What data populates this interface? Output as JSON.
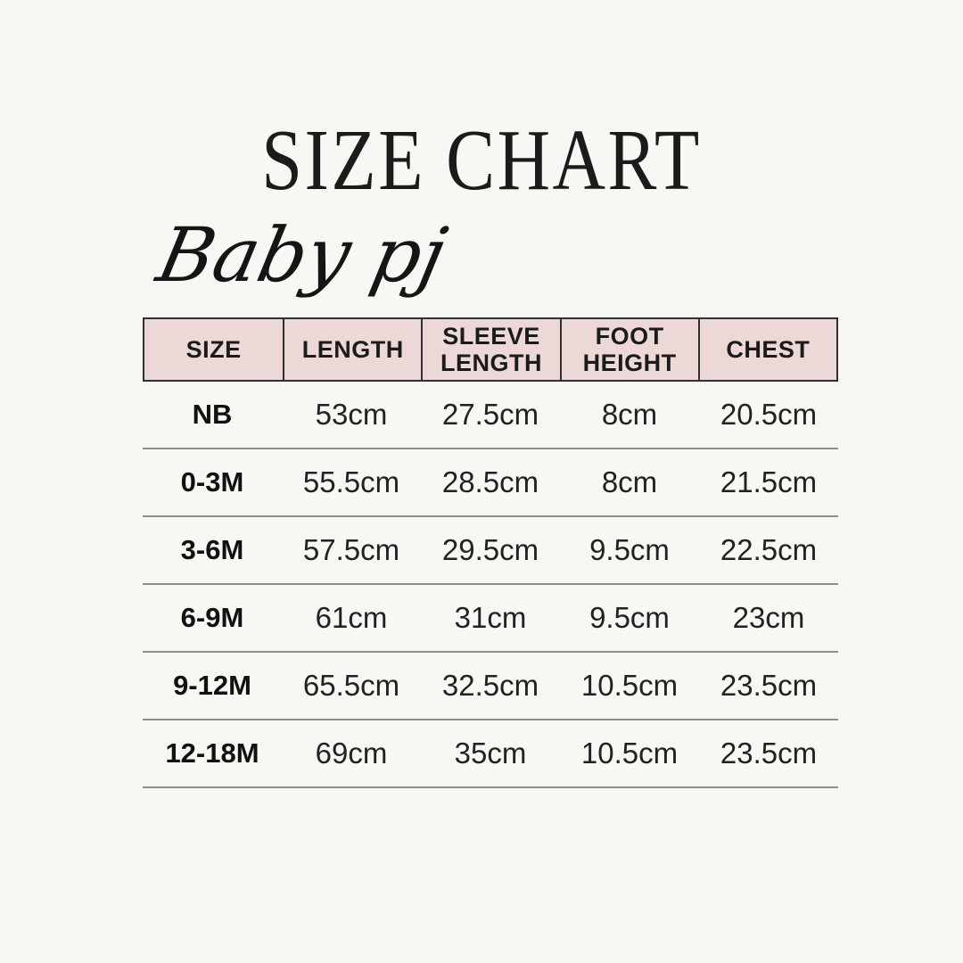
{
  "title": "SIZE CHART",
  "brand": "Baby pj",
  "colors": {
    "background": "#f8f7f3",
    "header_bg": "#ecd9d7",
    "header_border": "#2f2f2f",
    "grid_line": "#8f8f8f",
    "text": "#1b1b1b"
  },
  "table": {
    "columns": [
      "SIZE",
      "LENGTH",
      "SLEEVE LENGTH",
      "FOOT HEIGHT",
      "CHEST"
    ],
    "rows": [
      {
        "size": "NB",
        "values": [
          "53cm",
          "27.5cm",
          "8cm",
          "20.5cm"
        ]
      },
      {
        "size": "0-3M",
        "values": [
          "55.5cm",
          "28.5cm",
          "8cm",
          "21.5cm"
        ]
      },
      {
        "size": "3-6M",
        "values": [
          "57.5cm",
          "29.5cm",
          "9.5cm",
          "22.5cm"
        ]
      },
      {
        "size": "6-9M",
        "values": [
          "61cm",
          "31cm",
          "9.5cm",
          "23cm"
        ]
      },
      {
        "size": "9-12M",
        "values": [
          "65.5cm",
          "32.5cm",
          "10.5cm",
          "23.5cm"
        ]
      },
      {
        "size": "12-18M",
        "values": [
          "69cm",
          "35cm",
          "10.5cm",
          "23.5cm"
        ]
      }
    ]
  },
  "chart_data": {
    "type": "table",
    "title": "SIZE CHART",
    "subtitle": "Baby pj",
    "columns": [
      "SIZE",
      "LENGTH",
      "SLEEVE LENGTH",
      "FOOT HEIGHT",
      "CHEST"
    ],
    "rows": [
      [
        "NB",
        "53cm",
        "27.5cm",
        "8cm",
        "20.5cm"
      ],
      [
        "0-3M",
        "55.5cm",
        "28.5cm",
        "8cm",
        "21.5cm"
      ],
      [
        "3-6M",
        "57.5cm",
        "29.5cm",
        "9.5cm",
        "22.5cm"
      ],
      [
        "6-9M",
        "61cm",
        "31cm",
        "9.5cm",
        "23cm"
      ],
      [
        "9-12M",
        "65.5cm",
        "32.5cm",
        "10.5cm",
        "23.5cm"
      ],
      [
        "12-18M",
        "69cm",
        "35cm",
        "10.5cm",
        "23.5cm"
      ]
    ]
  }
}
